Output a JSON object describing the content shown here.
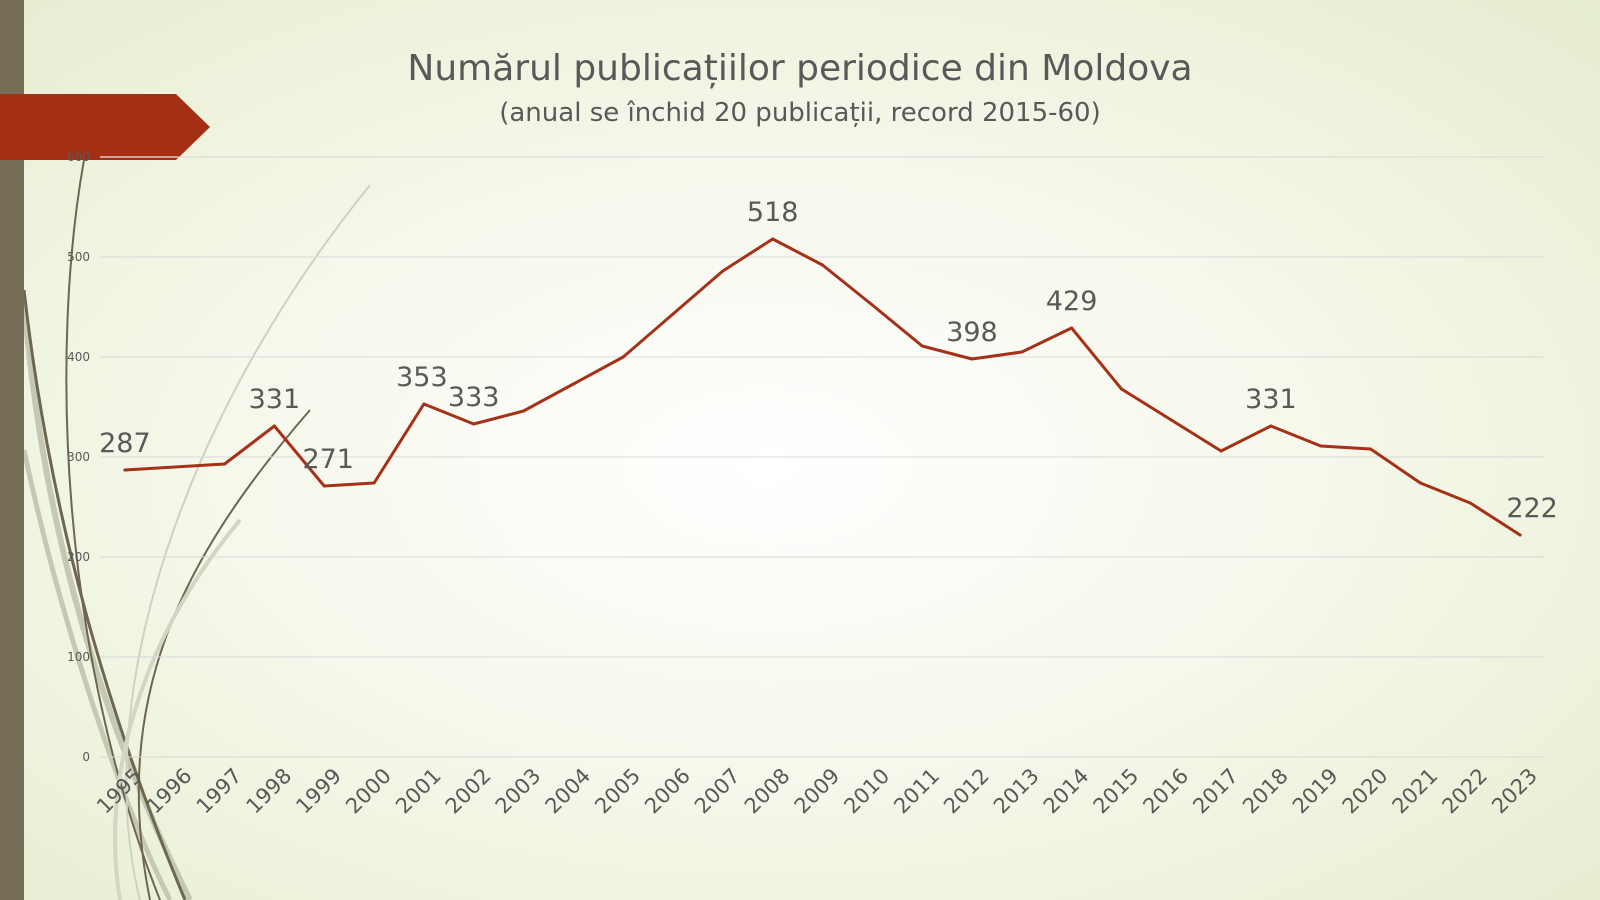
{
  "slide": {
    "title": "Numărul publicațiilor periodice din Moldova",
    "subtitle": "(anual se închid 20 publicații, record 2015-60)"
  },
  "colors": {
    "series_line": "#a43118",
    "accent_ribbon": "#a52f12",
    "left_bar": "#756d55",
    "text": "#595959",
    "grid": "#d9d9d9"
  },
  "chart_data": {
    "type": "line",
    "title": "Numărul publicațiilor periodice din Moldova",
    "subtitle": "(anual se închid 20 publicații, record 2015-60)",
    "xlabel": "",
    "ylabel": "",
    "ylim": [
      0,
      600
    ],
    "yticks": [
      0,
      100,
      200,
      300,
      400,
      500,
      600
    ],
    "grid": true,
    "legend": "none",
    "categories": [
      "1995",
      "1996",
      "1997",
      "1998",
      "1999",
      "2000",
      "2001",
      "2002",
      "2003",
      "2004",
      "2005",
      "2006",
      "2007",
      "2008",
      "2009",
      "2010",
      "2011",
      "2012",
      "2013",
      "2014",
      "2015",
      "2016",
      "2017",
      "2018",
      "2019",
      "2020",
      "2021",
      "2022",
      "2023"
    ],
    "series": [
      {
        "values": [
          287,
          290,
          293,
          331,
          271,
          274,
          353,
          333,
          346,
          373,
          400,
          443,
          486,
          518,
          492,
          452,
          411,
          398,
          405,
          429,
          368,
          337,
          306,
          331,
          311,
          308,
          274,
          254,
          222
        ]
      }
    ],
    "data_labels": [
      {
        "category": "1995",
        "value": "287"
      },
      {
        "category": "1998",
        "value": "331"
      },
      {
        "category": "1999",
        "value": "271"
      },
      {
        "category": "2001",
        "value": "353"
      },
      {
        "category": "2002",
        "value": "333"
      },
      {
        "category": "2008",
        "value": "518"
      },
      {
        "category": "2012",
        "value": "398"
      },
      {
        "category": "2014",
        "value": "429"
      },
      {
        "category": "2018",
        "value": "331"
      },
      {
        "category": "2023",
        "value": "222"
      }
    ]
  }
}
